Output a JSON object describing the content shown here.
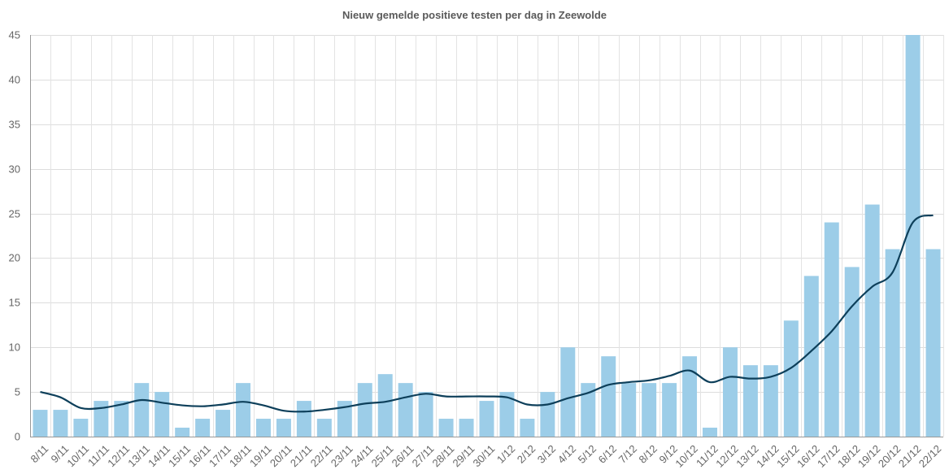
{
  "chart_data": {
    "type": "bar",
    "title": "Nieuw gemelde positieve testen per dag in Zeewolde",
    "xlabel": "",
    "ylabel": "",
    "ylim": [
      0,
      45
    ],
    "yticks": [
      "0",
      "5",
      "10",
      "15",
      "20",
      "25",
      "30",
      "35",
      "40",
      "45"
    ],
    "grid": true,
    "categories": [
      "8/11",
      "9/11",
      "10/11",
      "11/11",
      "12/11",
      "13/11",
      "14/11",
      "15/11",
      "16/11",
      "17/11",
      "18/11",
      "19/11",
      "20/11",
      "21/11",
      "22/11",
      "23/11",
      "24/11",
      "25/11",
      "26/11",
      "27/11",
      "28/11",
      "29/11",
      "30/11",
      "1/12",
      "2/12",
      "3/12",
      "4/12",
      "5/12",
      "6/12",
      "7/12",
      "8/12",
      "9/12",
      "10/12",
      "11/12",
      "12/12",
      "13/12",
      "14/12",
      "15/12",
      "16/12",
      "17/12",
      "18/12",
      "19/12",
      "20/12",
      "21/12",
      "22/12"
    ],
    "series": [
      {
        "type": "bar",
        "values": [
          3,
          3,
          2,
          4,
          4,
          6,
          5,
          1,
          2,
          3,
          6,
          2,
          2,
          4,
          2,
          4,
          6,
          7,
          6,
          5,
          2,
          2,
          4,
          5,
          2,
          5,
          10,
          6,
          9,
          6,
          6,
          6,
          9,
          1,
          10,
          8,
          8,
          13,
          18,
          24,
          19,
          26,
          21,
          45,
          21
        ],
        "color": "#9ccde8"
      },
      {
        "type": "line",
        "values": [
          5.0,
          4.4,
          3.2,
          3.2,
          3.6,
          4.1,
          3.8,
          3.5,
          3.4,
          3.6,
          3.9,
          3.5,
          2.9,
          2.8,
          3.0,
          3.3,
          3.7,
          3.9,
          4.4,
          4.8,
          4.5,
          4.5,
          4.5,
          4.4,
          3.6,
          3.6,
          4.3,
          4.9,
          5.8,
          6.1,
          6.3,
          6.8,
          7.4,
          6.1,
          6.7,
          6.5,
          6.7,
          7.7,
          9.6,
          11.8,
          14.6,
          16.8,
          18.4,
          24.0,
          24.8
        ],
        "color": "#0d3f5a"
      }
    ]
  }
}
